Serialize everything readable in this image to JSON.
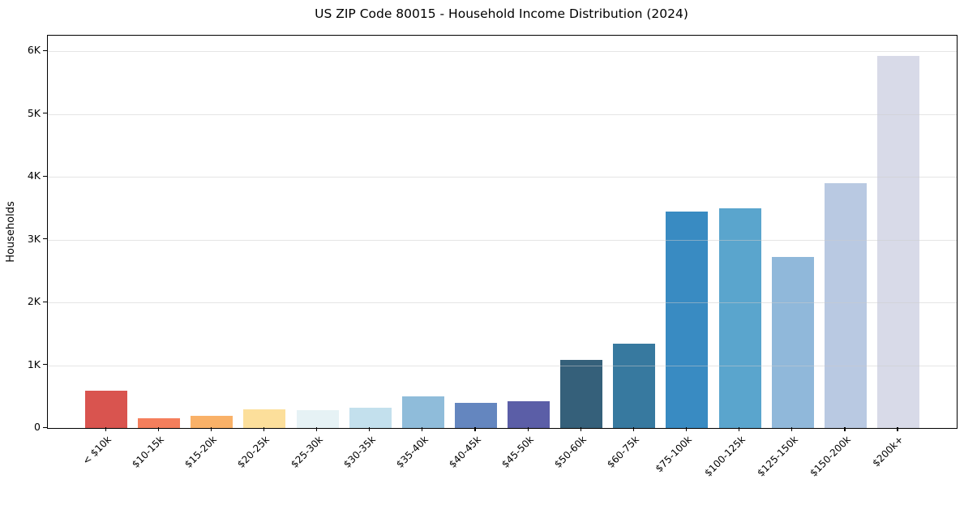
{
  "chart_data": {
    "type": "bar",
    "title": "US ZIP Code 80015 - Household Income Distribution (2024)",
    "xlabel": "",
    "ylabel": "Households",
    "categories": [
      "< $10k",
      "$10-15k",
      "$15-20k",
      "$20-25k",
      "$25-30k",
      "$30-35k",
      "$35-40k",
      "$40-45k",
      "$45-50k",
      "$50-60k",
      "$60-75k",
      "$75-100k",
      "$100-125k",
      "$125-150k",
      "$150-200k",
      "$200k+"
    ],
    "values": [
      600,
      160,
      200,
      300,
      290,
      325,
      510,
      400,
      430,
      1090,
      1345,
      3450,
      3505,
      2730,
      3900,
      5930
    ],
    "bar_colors": [
      "#d9544f",
      "#f47e5c",
      "#f9b168",
      "#fcdf9b",
      "#e6f2f5",
      "#c3e0ed",
      "#8fbcda",
      "#6486bf",
      "#5b5ea7",
      "#35607a",
      "#37799f",
      "#398bc2",
      "#5aa5cd",
      "#90b8da",
      "#b9c9e2",
      "#d8dae8"
    ],
    "ylim": [
      0,
      6250
    ],
    "yticks": [
      {
        "value": 0,
        "label": "0"
      },
      {
        "value": 1000,
        "label": "1K"
      },
      {
        "value": 2000,
        "label": "2K"
      },
      {
        "value": 3000,
        "label": "3K"
      },
      {
        "value": 4000,
        "label": "4K"
      },
      {
        "value": 5000,
        "label": "5K"
      },
      {
        "value": 6000,
        "label": "6K"
      }
    ],
    "grid": "horizontal",
    "legend": "none",
    "style": {
      "background": "#ffffff",
      "frame_color": "#000000",
      "grid_color_rgba": "rgba(203,203,203,0.5)",
      "xtick_rotation_deg": 45
    }
  }
}
